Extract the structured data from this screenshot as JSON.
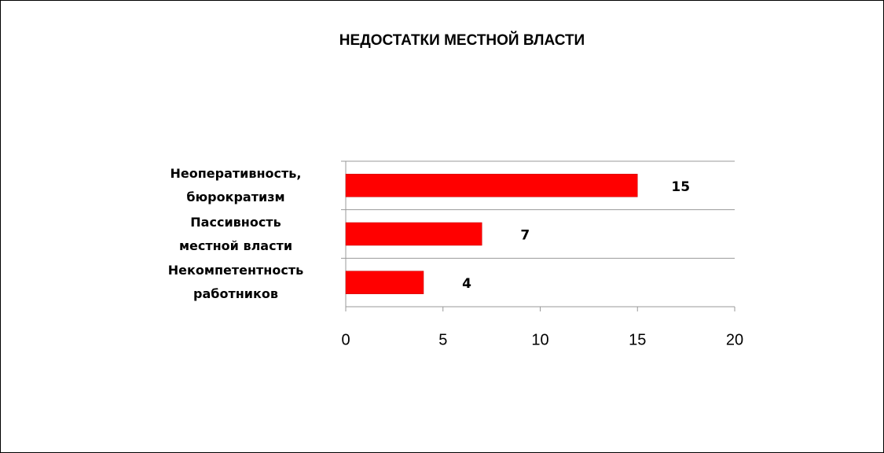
{
  "chart_data": {
    "type": "bar",
    "orientation": "horizontal",
    "title": "НЕДОСТАТКИ МЕСТНОЙ ВЛАСТИ",
    "categories": [
      "Неоперативность,\nбюрократизм",
      "Пассивность\nместной власти",
      "Некомпетентность\nработников"
    ],
    "values": [
      15,
      7,
      4
    ],
    "color": "#ff0000",
    "xlim": [
      0,
      20
    ],
    "xticks": [
      0,
      5,
      10,
      15,
      20
    ]
  }
}
